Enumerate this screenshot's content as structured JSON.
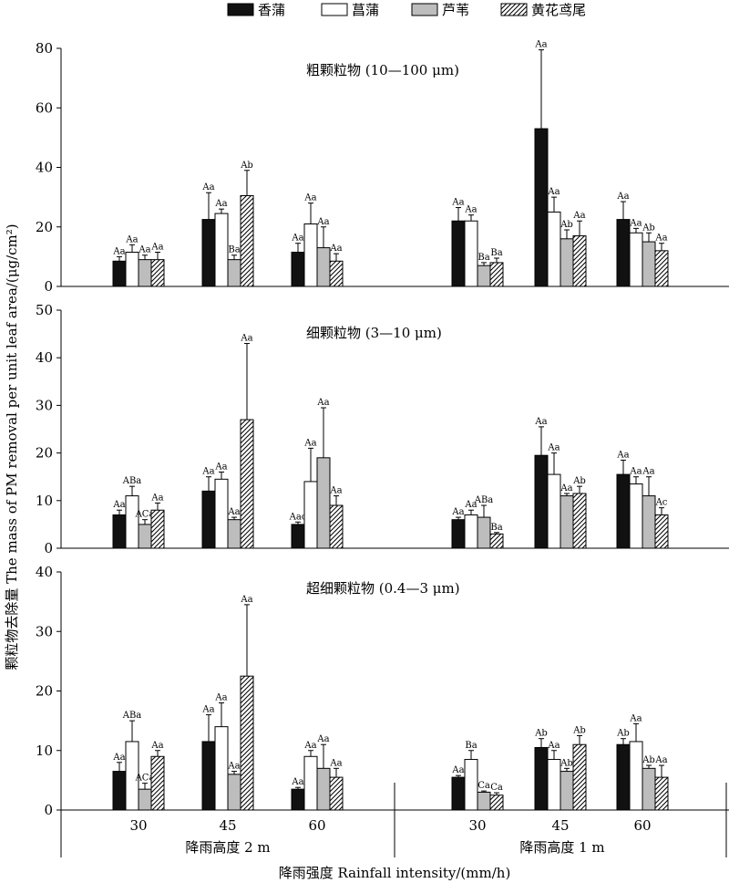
{
  "legend": [
    "香蒲",
    "菖蒲",
    "芦苇",
    "黄花鸢尾"
  ],
  "x_title": "降雨强度 Rainfall intensity/(mm/h)",
  "y_title": "颗粒物去除量 The mass of PM removal per unit leaf area/(μg/cm²)",
  "groups": [
    "降雨高度 2 m",
    "降雨高度 1 m"
  ],
  "x_ticks": [
    "30",
    "45",
    "60",
    "30",
    "45",
    "60"
  ],
  "series_styles": [
    {
      "name": "香蒲",
      "fill": "#111111",
      "pattern": "solid"
    },
    {
      "name": "菖蒲",
      "fill": "#ffffff",
      "pattern": "solid"
    },
    {
      "name": "芦苇",
      "fill": "#bdbdbd",
      "pattern": "solid"
    },
    {
      "name": "黄花鸢尾",
      "fill": "#ffffff",
      "pattern": "diagonal-hatch"
    }
  ],
  "chart_data": [
    {
      "type": "bar",
      "title": "粗颗粒物 (10—100 μm)",
      "ylim": [
        0,
        80
      ],
      "yticks": [
        0,
        20,
        40,
        60,
        80
      ],
      "categories": [
        "30",
        "45",
        "60",
        "30",
        "45",
        "60"
      ],
      "series": [
        {
          "name": "香蒲",
          "values": [
            8.5,
            22.5,
            11.5,
            22,
            53,
            22.5
          ],
          "errors": [
            1.5,
            9,
            3,
            4.5,
            26.5,
            6
          ],
          "labels": [
            "Aa",
            "Aa",
            "Aa",
            "Aa",
            "Aa",
            "Aa"
          ]
        },
        {
          "name": "菖蒲",
          "values": [
            11.5,
            24.5,
            21,
            22,
            25,
            18
          ],
          "errors": [
            2.5,
            1.5,
            7,
            2,
            5,
            1.5
          ],
          "labels": [
            "Aa",
            "Aa",
            "Aa",
            "Aa",
            "Aa",
            "Aa"
          ]
        },
        {
          "name": "芦苇",
          "values": [
            9,
            9,
            13,
            7,
            16,
            15
          ],
          "errors": [
            1.5,
            1.5,
            7,
            1,
            3,
            3
          ],
          "labels": [
            "Aa",
            "Ba",
            "Aa",
            "Ba",
            "Ab",
            "Ab"
          ]
        },
        {
          "name": "黄花鸢尾",
          "values": [
            9,
            30.5,
            8.5,
            8,
            17,
            12
          ],
          "errors": [
            2.5,
            8.5,
            2.5,
            1.5,
            5,
            2.5
          ],
          "labels": [
            "Aa",
            "Ab",
            "Aa",
            "Ba",
            "Aa",
            "Aa"
          ]
        }
      ]
    },
    {
      "type": "bar",
      "title": "细颗粒物 (3—10 μm)",
      "ylim": [
        0,
        50
      ],
      "yticks": [
        0,
        10,
        20,
        30,
        40,
        50
      ],
      "categories": [
        "30",
        "45",
        "60",
        "30",
        "45",
        "60"
      ],
      "series": [
        {
          "name": "香蒲",
          "values": [
            7,
            12,
            5,
            6,
            19.5,
            15.5
          ],
          "errors": [
            1,
            3,
            0.5,
            0.5,
            6,
            3
          ],
          "labels": [
            "Aa",
            "Aa",
            "Aac",
            "Aa",
            "Aa",
            "Aa"
          ]
        },
        {
          "name": "菖蒲",
          "values": [
            11,
            14.5,
            14,
            7,
            15.5,
            13.5
          ],
          "errors": [
            2,
            1.5,
            7,
            1,
            4.5,
            1.5
          ],
          "labels": [
            "ABa",
            "Aa",
            "Aa",
            "Aa",
            "Aa",
            "Aa"
          ]
        },
        {
          "name": "芦苇",
          "values": [
            5,
            6,
            19,
            6.5,
            11,
            11
          ],
          "errors": [
            1,
            0.5,
            10.5,
            2.5,
            0.5,
            4
          ],
          "labels": [
            "ACa",
            "Aa",
            "Aa",
            "ABa",
            "Aa",
            "Aa"
          ]
        },
        {
          "name": "黄花鸢尾",
          "values": [
            8,
            27,
            9,
            3,
            11.5,
            7
          ],
          "errors": [
            1.5,
            16,
            2,
            0.3,
            1.5,
            1.5
          ],
          "labels": [
            "Aa",
            "Aa",
            "Aa",
            "Ba",
            "Ab",
            "Ac"
          ]
        }
      ]
    },
    {
      "type": "bar",
      "title": "超细颗粒物 (0.4—3 μm)",
      "ylim": [
        0,
        40
      ],
      "yticks": [
        0,
        10,
        20,
        30,
        40
      ],
      "categories": [
        "30",
        "45",
        "60",
        "30",
        "45",
        "60"
      ],
      "series": [
        {
          "name": "香蒲",
          "values": [
            6.5,
            11.5,
            3.5,
            5.5,
            10.5,
            11
          ],
          "errors": [
            1.5,
            4.5,
            0.3,
            0.3,
            1.5,
            1
          ],
          "labels": [
            "Aa",
            "Aa",
            "Aa",
            "Aa",
            "Ab",
            "Ab"
          ]
        },
        {
          "name": "菖蒲",
          "values": [
            11.5,
            14,
            9,
            8.5,
            8.5,
            11.5
          ],
          "errors": [
            3.5,
            4,
            1,
            1.5,
            1.5,
            3
          ],
          "labels": [
            "ABa",
            "Aa",
            "Aa",
            "Ba",
            "Aa",
            "Aa"
          ]
        },
        {
          "name": "芦苇",
          "values": [
            3.5,
            6,
            7,
            3,
            6.5,
            7
          ],
          "errors": [
            1,
            0.5,
            4,
            0.2,
            0.5,
            0.5
          ],
          "labels": [
            "ACa",
            "Aa",
            "Aa",
            "Ca",
            "Ab",
            "Ab"
          ]
        },
        {
          "name": "黄花鸢尾",
          "values": [
            9,
            22.5,
            5.5,
            2.5,
            11,
            5.5
          ],
          "errors": [
            1,
            12,
            1.5,
            0.4,
            1.5,
            2
          ],
          "labels": [
            "Aa",
            "Aa",
            "Aa",
            "Ca",
            "Ab",
            "Aa"
          ]
        }
      ]
    }
  ]
}
